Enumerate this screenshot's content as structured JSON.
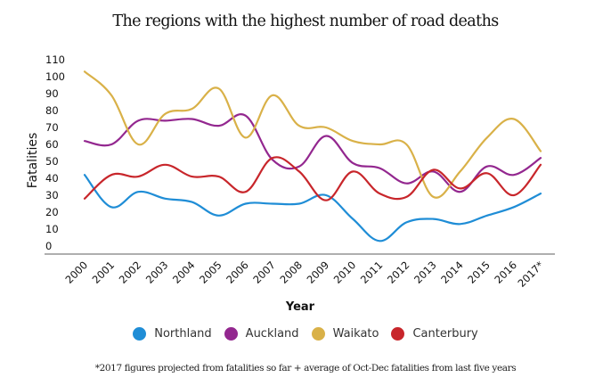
{
  "chart_data": {
    "type": "line",
    "title": "The regions with the highest number of road deaths",
    "xlabel": "Year",
    "ylabel": "Fatalities",
    "ylim": [
      0,
      110
    ],
    "yticks": [
      "0",
      "10",
      "20",
      "30",
      "40",
      "50",
      "60",
      "70",
      "80",
      "90",
      "100",
      "110"
    ],
    "grid": false,
    "legend_position": "bottom",
    "categories": [
      "2000",
      "2001",
      "2002",
      "2003",
      "2004",
      "2005",
      "2006",
      "2007",
      "2008",
      "2009",
      "2010",
      "2011",
      "2012",
      "2013",
      "2014",
      "2015",
      "2016",
      "2017*"
    ],
    "series": [
      {
        "name": "Northland",
        "color": "#1f8dd6",
        "values": [
          42,
          23,
          32,
          28,
          26,
          18,
          25,
          25,
          25,
          30,
          16,
          3,
          14,
          16,
          13,
          18,
          23,
          31
        ]
      },
      {
        "name": "Auckland",
        "color": "#93278f",
        "values": [
          62,
          60,
          74,
          74,
          75,
          71,
          77,
          51,
          47,
          65,
          49,
          46,
          37,
          44,
          32,
          47,
          42,
          52
        ]
      },
      {
        "name": "Waikato",
        "color": "#d9b148",
        "values": [
          103,
          89,
          60,
          78,
          81,
          93,
          64,
          89,
          71,
          70,
          62,
          60,
          60,
          29,
          44,
          64,
          75,
          56
        ]
      },
      {
        "name": "Canterbury",
        "color": "#c8262b",
        "values": [
          28,
          42,
          41,
          48,
          41,
          41,
          32,
          52,
          44,
          27,
          44,
          31,
          29,
          45,
          34,
          43,
          30,
          48
        ]
      }
    ],
    "footnote": "*2017 figures projected from fatalities so far + average of Oct-Dec fatalities from last five years"
  },
  "axis_color": "#7f7f7f"
}
